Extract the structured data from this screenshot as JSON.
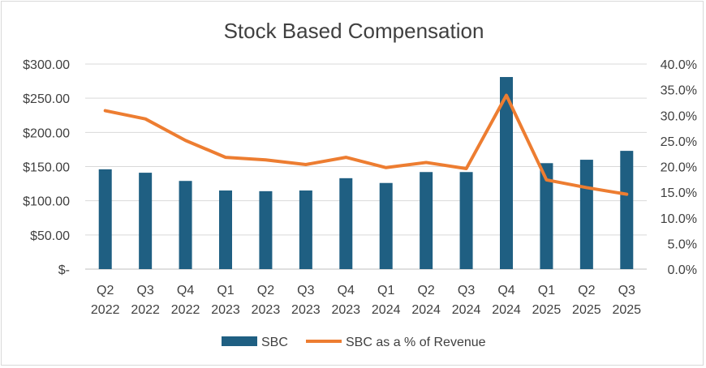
{
  "chart_data": {
    "type": "bar+line",
    "title": "Stock Based Compensation",
    "categories": [
      [
        "Q2",
        "2022"
      ],
      [
        "Q3",
        "2022"
      ],
      [
        "Q4",
        "2022"
      ],
      [
        "Q1",
        "2023"
      ],
      [
        "Q2",
        "2023"
      ],
      [
        "Q3",
        "2023"
      ],
      [
        "Q4",
        "2023"
      ],
      [
        "Q1",
        "2024"
      ],
      [
        "Q2",
        "2024"
      ],
      [
        "Q3",
        "2024"
      ],
      [
        "Q4",
        "2024"
      ],
      [
        "Q1",
        "2025"
      ],
      [
        "Q2",
        "2025"
      ],
      [
        "Q3",
        "2025"
      ]
    ],
    "series": [
      {
        "name": "SBC",
        "type": "bar",
        "axis": "left",
        "color": "#1f5f82",
        "values": [
          146,
          141,
          129,
          115,
          114,
          115,
          133,
          126,
          142,
          142,
          281,
          155,
          160,
          173
        ]
      },
      {
        "name": "SBC as a % of Revenue",
        "type": "line",
        "axis": "right",
        "color": "#ed7d31",
        "values": [
          30.9,
          29.3,
          25.1,
          21.8,
          21.3,
          20.4,
          21.8,
          19.8,
          20.8,
          19.6,
          33.9,
          17.4,
          15.9,
          14.6
        ]
      }
    ],
    "y_left": {
      "range": [
        0,
        300
      ],
      "ticks": [
        300,
        250,
        200,
        150,
        100,
        50,
        0
      ],
      "tick_labels": [
        "$300.00",
        "$250.00",
        "$200.00",
        "$150.00",
        "$100.00",
        "$50.00",
        "$-"
      ]
    },
    "y_right": {
      "range": [
        0,
        40
      ],
      "ticks": [
        40,
        35,
        30,
        25,
        20,
        15,
        10,
        5,
        0
      ],
      "tick_labels": [
        "40.0%",
        "35.0%",
        "30.0%",
        "25.0%",
        "20.0%",
        "15.0%",
        "10.0%",
        "5.0%",
        "0.0%"
      ]
    },
    "grid": true,
    "legend": {
      "position": "bottom",
      "entries": [
        "SBC",
        "SBC as a % of Revenue"
      ]
    }
  }
}
